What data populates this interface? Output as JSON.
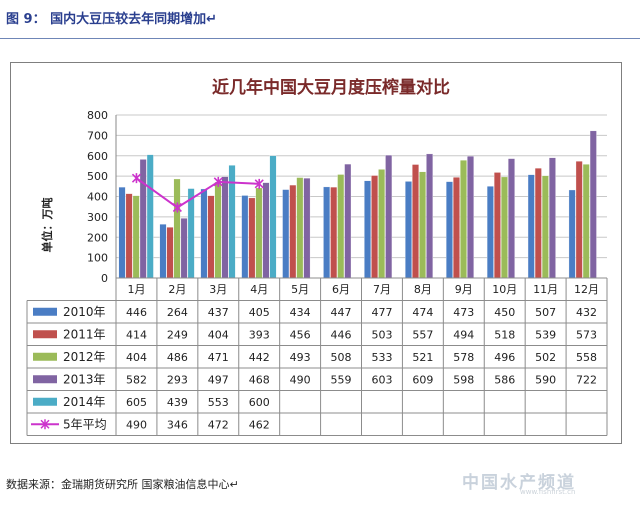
{
  "figure": {
    "caption": "图 9： 国内大豆压较去年同期增加↵",
    "source": "数据来源：金瑞期货研究所  国家粮油信息中心↵",
    "watermark": "中国水产频道",
    "watermark_url": "www.fishfirst.cn"
  },
  "chart_data": {
    "type": "bar",
    "title": "近几年中国大豆月度压榨量对比",
    "ylabel": "单位：万吨",
    "xlabel": "",
    "ylim": [
      0,
      800
    ],
    "yticks": [
      0,
      100,
      200,
      300,
      400,
      500,
      600,
      700,
      800
    ],
    "grid": true,
    "legend_placement": "data-table-left",
    "categories": [
      "1月",
      "2月",
      "3月",
      "4月",
      "5月",
      "6月",
      "7月",
      "8月",
      "9月",
      "10月",
      "11月",
      "12月"
    ],
    "series": [
      {
        "name": "2010年",
        "type": "bar",
        "color": "#4a7dc4",
        "values": [
          446,
          264,
          437,
          405,
          434,
          447,
          477,
          474,
          473,
          450,
          507,
          432
        ]
      },
      {
        "name": "2011年",
        "type": "bar",
        "color": "#c0504d",
        "values": [
          414,
          249,
          404,
          393,
          456,
          446,
          503,
          557,
          494,
          518,
          539,
          573
        ]
      },
      {
        "name": "2012年",
        "type": "bar",
        "color": "#9bbb59",
        "values": [
          404,
          486,
          471,
          442,
          493,
          508,
          533,
          521,
          578,
          496,
          502,
          558
        ]
      },
      {
        "name": "2013年",
        "type": "bar",
        "color": "#8064a2",
        "values": [
          582,
          293,
          497,
          468,
          490,
          559,
          603,
          609,
          598,
          586,
          590,
          722
        ]
      },
      {
        "name": "2014年",
        "type": "bar",
        "color": "#4bacc6",
        "values": [
          605,
          439,
          553,
          600,
          null,
          null,
          null,
          null,
          null,
          null,
          null,
          null
        ]
      },
      {
        "name": "5年平均",
        "type": "line",
        "color": "#cc33cc",
        "values": [
          490,
          346,
          472,
          462,
          null,
          null,
          null,
          null,
          null,
          null,
          null,
          null
        ]
      }
    ]
  }
}
